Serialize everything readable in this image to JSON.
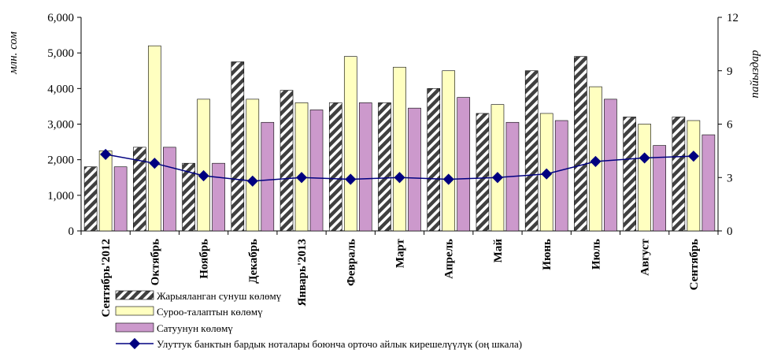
{
  "chart_data": {
    "type": "bar",
    "title": "",
    "categories": [
      "Сентябрь'2012",
      "Октябрь",
      "Ноябрь",
      "Декабрь",
      "Январь'2013",
      "Февраль",
      "Март",
      "Апрель",
      "Май",
      "Июнь",
      "Июль",
      "Август",
      "Сентябрь"
    ],
    "series": [
      {
        "name": "Жарыяланган сунуш көлөмү",
        "type": "bar",
        "axis": "left",
        "pattern": "hatch",
        "values": [
          1800,
          2350,
          1900,
          4750,
          3950,
          3600,
          3600,
          4000,
          3300,
          4500,
          4900,
          3200,
          3200
        ]
      },
      {
        "name": "Суроо-талаптын көлөмү",
        "type": "bar",
        "axis": "left",
        "color": "#ffffc0",
        "values": [
          2250,
          5200,
          3700,
          3700,
          3600,
          4900,
          4600,
          4500,
          3550,
          3300,
          4050,
          3000,
          3100
        ]
      },
      {
        "name": "Сатуунун көлөмү",
        "type": "bar",
        "axis": "left",
        "color": "#cc99cc",
        "values": [
          1800,
          2350,
          1900,
          3050,
          3400,
          3600,
          3450,
          3750,
          3050,
          3100,
          3700,
          2400,
          2700
        ]
      },
      {
        "name": "Улуттук банктын бардык ноталары боюнча орточо айлык кирешелүүлүк (оң шкала)",
        "type": "line",
        "axis": "right",
        "color": "#000080",
        "values": [
          4.3,
          3.8,
          3.1,
          2.8,
          3.0,
          2.9,
          3.0,
          2.9,
          3.0,
          3.2,
          3.9,
          4.1,
          4.2
        ]
      }
    ],
    "y_left": {
      "label": "млн. сом",
      "ylim": [
        0,
        6000
      ],
      "ticks": [
        "0",
        "1,000",
        "2,000",
        "3,000",
        "4,000",
        "5,000",
        "6,000"
      ]
    },
    "y_right": {
      "label": "пайыздар",
      "ylim": [
        0,
        12
      ],
      "ticks": [
        "0",
        "3",
        "6",
        "9",
        "12"
      ]
    },
    "legend_position": "bottom-left",
    "grid": false
  }
}
